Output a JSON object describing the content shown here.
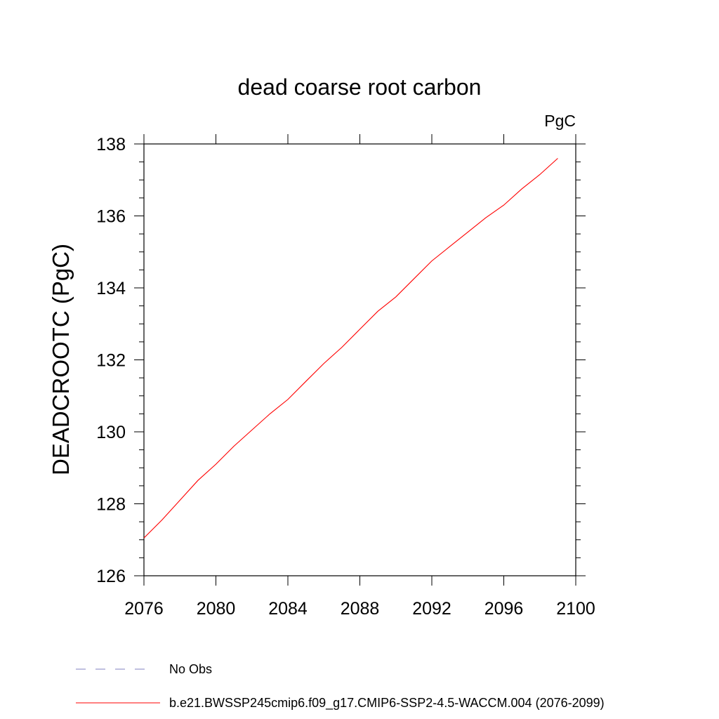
{
  "chart_data": {
    "type": "line",
    "title": "dead coarse root carbon",
    "units": "PgC",
    "ylabel": "DEADCROOTC  (PgC)",
    "xlabel": "",
    "xlim": [
      2076,
      2100
    ],
    "ylim": [
      126,
      138
    ],
    "x_ticks": [
      "2076",
      "2080",
      "2084",
      "2088",
      "2092",
      "2096",
      "2100"
    ],
    "y_ticks": [
      "126",
      "128",
      "130",
      "132",
      "134",
      "136",
      "138"
    ],
    "grid": false,
    "legend_position": "bottom",
    "series": [
      {
        "name": "b.e21.BWSSP245cmip6.f09_g17.CMIP6-SSP2-4.5-WACCM.004 (2076-2099)",
        "color": "#ff0000",
        "style": "solid",
        "x": [
          2076,
          2077,
          2078,
          2079,
          2080,
          2081,
          2082,
          2083,
          2084,
          2085,
          2086,
          2087,
          2088,
          2089,
          2090,
          2091,
          2092,
          2093,
          2094,
          2095,
          2096,
          2097,
          2098,
          2099
        ],
        "y": [
          127.05,
          127.55,
          128.1,
          128.65,
          129.1,
          129.6,
          130.05,
          130.5,
          130.9,
          131.4,
          131.9,
          132.35,
          132.85,
          133.35,
          133.75,
          134.25,
          134.75,
          135.15,
          135.55,
          135.95,
          136.3,
          136.75,
          137.15,
          137.6
        ]
      }
    ],
    "legend": [
      {
        "label": "No Obs",
        "color": "#8080c0",
        "style": "dashed"
      },
      {
        "label": "b.e21.BWSSP245cmip6.f09_g17.CMIP6-SSP2-4.5-WACCM.004 (2076-2099)",
        "color": "#ff0000",
        "style": "solid"
      }
    ]
  }
}
